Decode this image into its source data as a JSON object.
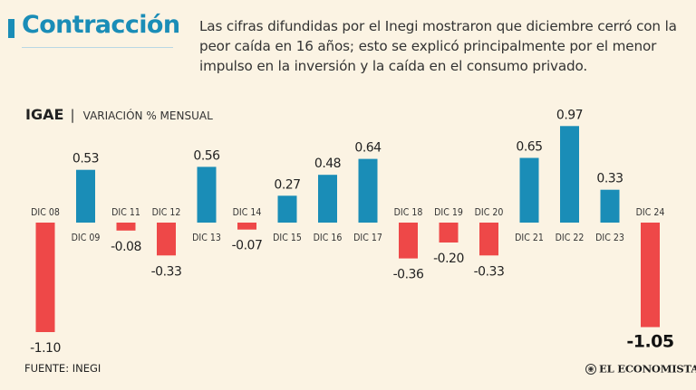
{
  "header": {
    "title": "Contracción",
    "subtitle": "Las cifras difundidas por el Inegi mostraron que diciembre cerró con la peor caída en 16 años; esto se explicó principalmente por el menor impulso en la inversión y la caída en el consumo privado."
  },
  "chart_label": {
    "indicator": "IGAE",
    "separator": "|",
    "metric": "VARIACIÓN % MENSUAL"
  },
  "colors": {
    "positive": "#1a8db7",
    "negative": "#ee4848",
    "accent": "#1a8db7",
    "background": "#fbf3e3"
  },
  "chart_data": {
    "type": "bar",
    "title": "IGAE",
    "ylabel": "VARIACIÓN % MENSUAL",
    "xlabel": "",
    "categories": [
      "DIC 08",
      "DIC 09",
      "DIC 11",
      "DIC 12",
      "DIC 13",
      "DIC 14",
      "DIC 15",
      "DIC 16",
      "DIC 17",
      "DIC 18",
      "DIC 19",
      "DIC 20",
      "DIC 21",
      "DIC 22",
      "DIC 23",
      "DIC 24"
    ],
    "values": [
      -1.1,
      0.53,
      -0.08,
      -0.33,
      0.56,
      -0.07,
      0.27,
      0.48,
      0.64,
      -0.36,
      -0.2,
      -0.33,
      0.65,
      0.97,
      0.33,
      -1.05
    ],
    "value_labels": [
      "-1.10",
      "0.53",
      "-0.08",
      "-0.33",
      "0.56",
      "-0.07",
      "0.27",
      "0.48",
      "0.64",
      "-0.36",
      "-0.20",
      "-0.33",
      "0.65",
      "0.97",
      "0.33",
      "-1.05"
    ],
    "ylim": [
      -1.1,
      0.97
    ],
    "grid": false,
    "legend": "none",
    "highlight_last": true
  },
  "footer": {
    "source": "FUENTE: INEGI",
    "brand": "EL ECONOMISTA",
    "brand_icon": "el-economista-logo-icon"
  }
}
